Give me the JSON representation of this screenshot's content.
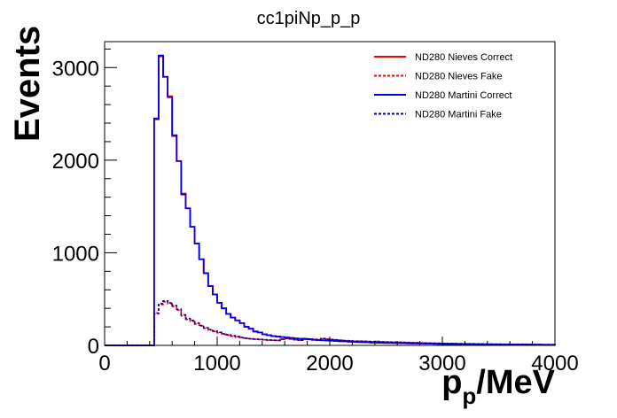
{
  "chart_data": {
    "type": "histogram",
    "title": "cc1piNp_p_p",
    "xlabel_main": "p",
    "xlabel_sub": "p",
    "xlabel_unit": "/MeV",
    "ylabel": "Events",
    "xlim": [
      0,
      4000
    ],
    "ylim": [
      0,
      3280
    ],
    "grid": false,
    "legend_position": "top-right",
    "x_ticks": [
      0,
      1000,
      2000,
      3000,
      4000
    ],
    "y_ticks": [
      0,
      1000,
      2000,
      3000
    ],
    "bin_edges": [
      0,
      40,
      80,
      120,
      160,
      200,
      240,
      280,
      320,
      360,
      400,
      440,
      480,
      520,
      560,
      600,
      640,
      680,
      720,
      760,
      800,
      840,
      880,
      920,
      960,
      1000,
      1040,
      1080,
      1120,
      1160,
      1200,
      1240,
      1280,
      1320,
      1360,
      1400,
      1440,
      1480,
      1520,
      1560,
      1600,
      1640,
      1680,
      1720,
      1760,
      1800,
      1840,
      1880,
      1920,
      1960,
      2000,
      2040,
      2080,
      2120,
      2160,
      2200,
      2240,
      2280,
      2320,
      2360,
      2400,
      2440,
      2480,
      2520,
      2560,
      2600,
      2640,
      2680,
      2720,
      2760,
      2800,
      2840,
      2880,
      2920,
      2960,
      3000,
      3040,
      3080,
      3120,
      3160,
      3200,
      3240,
      3280,
      3320,
      3360,
      3400,
      3440,
      3480,
      3520,
      3560,
      3600,
      3640,
      3680,
      3720,
      3760,
      3800,
      3840,
      3880,
      3920,
      3960,
      4000
    ],
    "series": [
      {
        "name": "ND280 Nieves Correct",
        "color": "#ff0000",
        "dash": false,
        "values": [
          0,
          0,
          0,
          0,
          0,
          0,
          0,
          0,
          0,
          0,
          0,
          2440,
          3120,
          2900,
          2690,
          2260,
          1990,
          1640,
          1480,
          1280,
          1100,
          930,
          780,
          640,
          550,
          460,
          400,
          340,
          300,
          270,
          240,
          200,
          180,
          150,
          140,
          120,
          110,
          100,
          95,
          90,
          85,
          80,
          75,
          72,
          68,
          65,
          60,
          58,
          55,
          52,
          50,
          48,
          45,
          43,
          40,
          38,
          36,
          34,
          32,
          30,
          29,
          28,
          27,
          26,
          25,
          24,
          23,
          22,
          21,
          20,
          19,
          18,
          18,
          17,
          16,
          15,
          15,
          14,
          14,
          13,
          13,
          12,
          12,
          11,
          11,
          10,
          10,
          10,
          9,
          9,
          9,
          8,
          8,
          8,
          7,
          7,
          7,
          6,
          6,
          6
        ]
      },
      {
        "name": "ND280 Nieves Fake",
        "color": "#ff0000",
        "dash": true,
        "values": [
          0,
          0,
          0,
          0,
          0,
          0,
          0,
          0,
          0,
          0,
          0,
          340,
          440,
          470,
          450,
          420,
          380,
          320,
          280,
          260,
          230,
          210,
          185,
          165,
          150,
          135,
          120,
          110,
          100,
          90,
          82,
          75,
          70,
          66,
          63,
          60,
          57,
          55,
          53,
          65,
          75,
          68,
          60,
          55,
          72,
          68,
          64,
          60,
          72,
          66,
          62,
          58,
          55,
          50,
          48,
          45,
          45,
          44,
          42,
          40,
          42,
          38,
          36,
          35,
          34,
          33,
          32,
          30,
          28,
          28,
          26,
          25,
          24,
          22,
          22,
          21,
          20,
          20,
          18,
          18,
          17,
          16,
          15,
          15,
          14,
          14,
          13,
          13,
          12,
          12,
          11,
          11,
          10,
          10,
          10,
          9,
          9,
          8,
          8,
          8
        ]
      },
      {
        "name": "ND280 Martini Correct",
        "color": "#0000ee",
        "dash": false,
        "values": [
          0,
          0,
          0,
          0,
          0,
          0,
          0,
          0,
          0,
          0,
          0,
          2450,
          3130,
          2900,
          2680,
          2270,
          1990,
          1630,
          1480,
          1280,
          1100,
          930,
          780,
          640,
          550,
          460,
          400,
          340,
          300,
          270,
          240,
          200,
          180,
          150,
          140,
          120,
          110,
          100,
          95,
          90,
          85,
          80,
          75,
          72,
          68,
          65,
          60,
          58,
          55,
          52,
          50,
          48,
          45,
          43,
          40,
          38,
          36,
          34,
          32,
          30,
          29,
          28,
          27,
          26,
          25,
          24,
          23,
          22,
          21,
          20,
          19,
          18,
          18,
          17,
          16,
          15,
          15,
          14,
          14,
          13,
          13,
          12,
          12,
          11,
          11,
          10,
          10,
          10,
          9,
          9,
          9,
          8,
          8,
          8,
          7,
          7,
          7,
          6,
          6,
          6
        ]
      },
      {
        "name": "ND280 Martini Fake",
        "color": "#0000aa",
        "dash": true,
        "values": [
          0,
          0,
          0,
          0,
          0,
          0,
          0,
          0,
          0,
          0,
          0,
          350,
          450,
          480,
          460,
          430,
          390,
          330,
          290,
          270,
          240,
          215,
          190,
          170,
          155,
          140,
          125,
          115,
          105,
          95,
          85,
          78,
          72,
          68,
          65,
          62,
          58,
          56,
          54,
          66,
          76,
          70,
          62,
          56,
          74,
          70,
          66,
          62,
          74,
          68,
          64,
          60,
          56,
          52,
          50,
          46,
          46,
          45,
          43,
          41,
          43,
          39,
          37,
          36,
          35,
          34,
          33,
          31,
          29,
          29,
          27,
          26,
          25,
          23,
          23,
          22,
          21,
          21,
          19,
          19,
          18,
          17,
          16,
          16,
          15,
          15,
          14,
          14,
          13,
          13,
          12,
          12,
          11,
          11,
          11,
          10,
          10,
          9,
          9,
          9
        ]
      }
    ]
  }
}
